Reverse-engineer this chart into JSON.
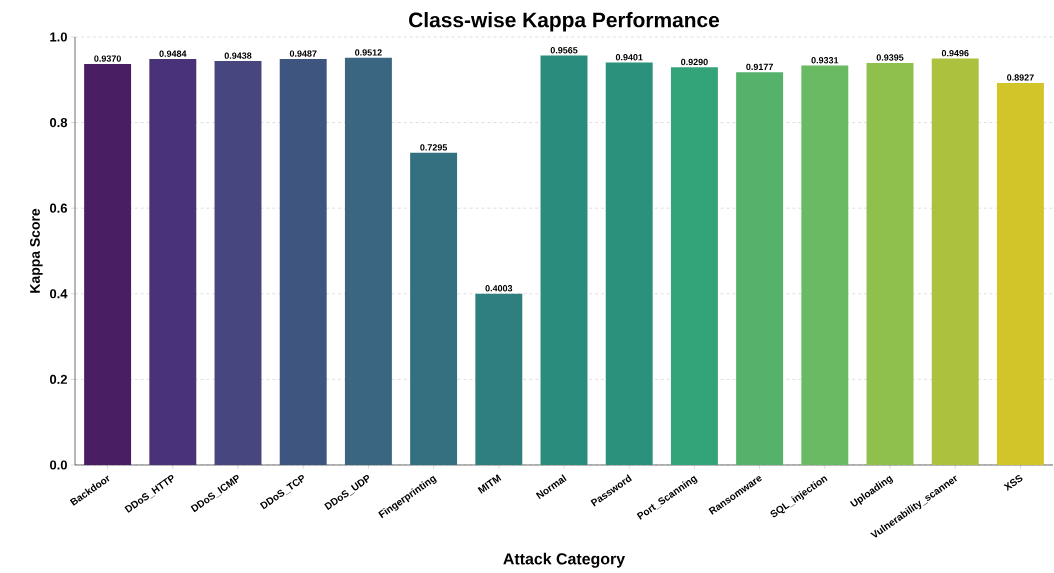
{
  "chart_data": {
    "type": "bar",
    "title": "Class-wise Kappa Performance",
    "xlabel": "Attack Category",
    "ylabel": "Kappa Score",
    "categories": [
      "Backdoor",
      "DDoS_HTTP",
      "DDoS_ICMP",
      "DDoS_TCP",
      "DDoS_UDP",
      "Fingerprinting",
      "MITM",
      "Normal",
      "Password",
      "Port_Scanning",
      "Ransomware",
      "SQL_injection",
      "Uploading",
      "Vulnerability_scanner",
      "XSS"
    ],
    "values": [
      0.937,
      0.9484,
      0.9438,
      0.9487,
      0.9512,
      0.7295,
      0.4003,
      0.9565,
      0.9401,
      0.929,
      0.9177,
      0.9331,
      0.9395,
      0.9496,
      0.8927
    ],
    "value_labels": [
      "0.9370",
      "0.9484",
      "0.9438",
      "0.9487",
      "0.9512",
      "0.7295",
      "0.4003",
      "0.9565",
      "0.9401",
      "0.9290",
      "0.9177",
      "0.9331",
      "0.9395",
      "0.9496",
      "0.8927"
    ],
    "colors": [
      "#4a1e62",
      "#4a3278",
      "#48467e",
      "#3e557f",
      "#3a6682",
      "#337080",
      "#2e7f7e",
      "#2a8c7c",
      "#2a927c",
      "#33a37a",
      "#55b26b",
      "#6aba63",
      "#8fc04c",
      "#acc23e",
      "#d2c52a"
    ],
    "ylim": [
      0,
      1
    ],
    "yticks": [
      {
        "value": 0,
        "label": "0.0"
      },
      {
        "value": 0.2,
        "label": "0.2"
      },
      {
        "value": 0.4,
        "label": "0.4"
      },
      {
        "value": 0.6,
        "label": "0.6"
      },
      {
        "value": 0.8,
        "label": "0.8"
      },
      {
        "value": 1,
        "label": "1.0"
      }
    ],
    "grid": "y"
  }
}
